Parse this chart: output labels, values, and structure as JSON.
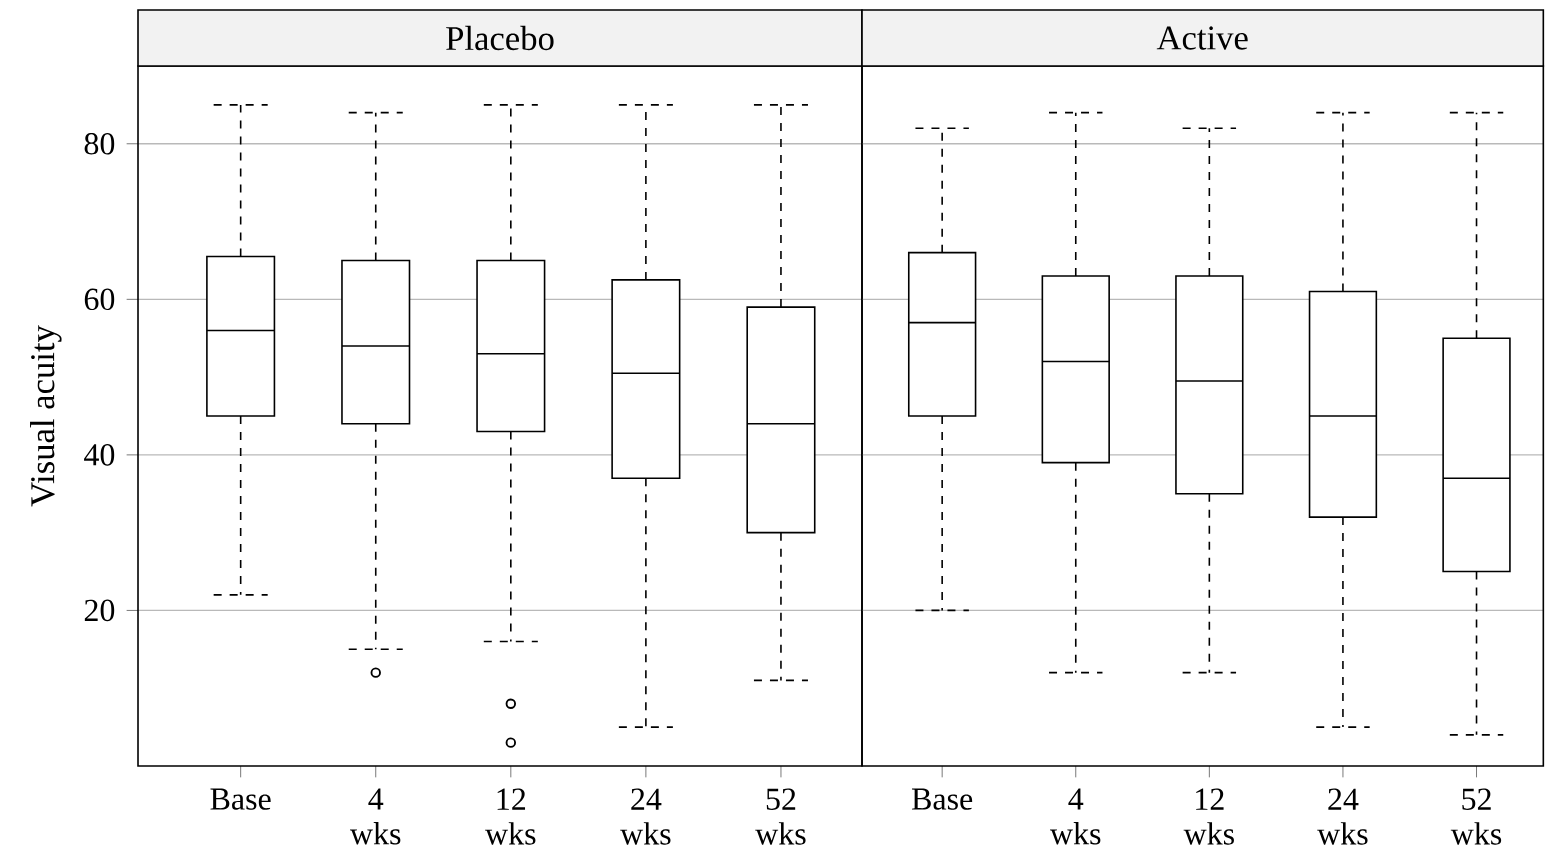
{
  "chart_data": [
    {
      "type": "box",
      "title": "Placebo",
      "ylabel": "Visual acuity",
      "categories": [
        "Base",
        "4 wks",
        "12 wks",
        "24 wks",
        "52 wks"
      ],
      "ylim": [
        0,
        90
      ],
      "yticks": [
        20,
        40,
        60,
        80
      ],
      "grid": "y",
      "boxes": [
        {
          "low": 22,
          "q1": 45,
          "median": 56,
          "q3": 65.5,
          "high": 85
        },
        {
          "low": 15,
          "q1": 44,
          "median": 54,
          "q3": 65,
          "high": 84,
          "outliers": [
            12
          ]
        },
        {
          "low": 16,
          "q1": 43,
          "median": 53,
          "q3": 65,
          "high": 85,
          "outliers": [
            8,
            3
          ]
        },
        {
          "low": 5,
          "q1": 37,
          "median": 50.5,
          "q3": 62.5,
          "high": 85
        },
        {
          "low": 11,
          "q1": 30,
          "median": 44,
          "q3": 59,
          "high": 85
        }
      ]
    },
    {
      "type": "box",
      "title": "Active",
      "categories": [
        "Base",
        "4 wks",
        "12 wks",
        "24 wks",
        "52 wks"
      ],
      "ylim": [
        0,
        90
      ],
      "yticks": [
        20,
        40,
        60,
        80
      ],
      "grid": "y",
      "tick_labels": "x",
      "boxes": [
        {
          "low": 20,
          "q1": 45,
          "median": 57,
          "q3": 66,
          "high": 82
        },
        {
          "low": 12,
          "q1": 39,
          "median": 52,
          "q3": 63,
          "high": 84
        },
        {
          "low": 12,
          "q1": 35,
          "median": 49.5,
          "q3": 63,
          "high": 82
        },
        {
          "low": 5,
          "q1": 32,
          "median": 45,
          "q3": 61,
          "high": 84
        },
        {
          "low": 4,
          "q1": 25,
          "median": 37,
          "q3": 55,
          "high": 84
        }
      ]
    }
  ]
}
